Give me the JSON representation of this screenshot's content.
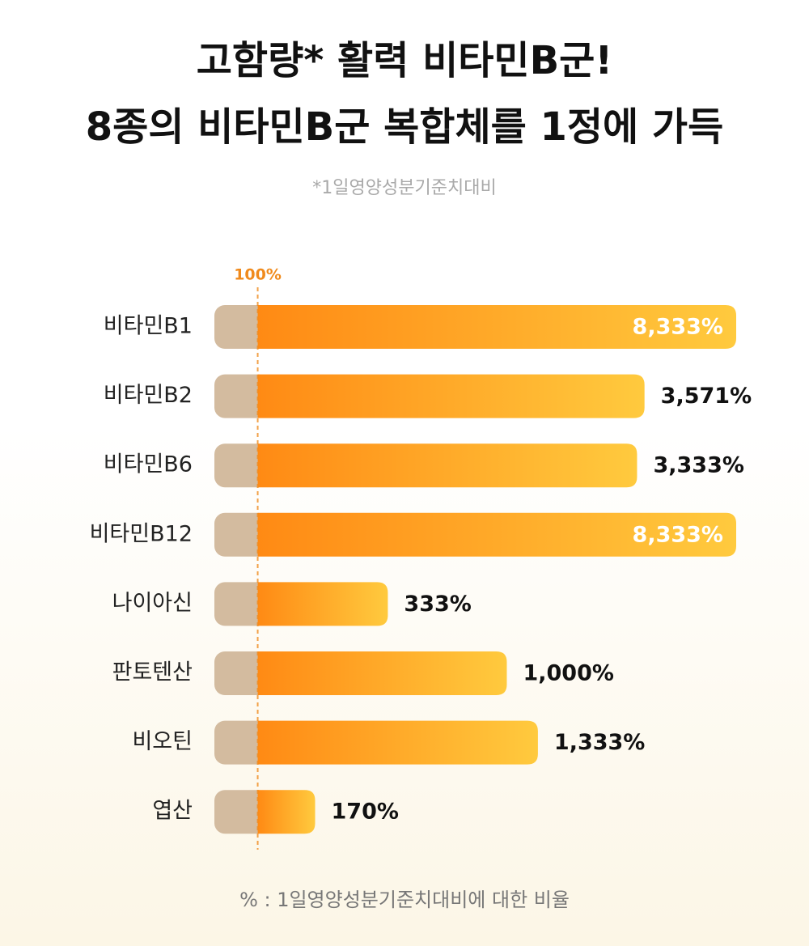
{
  "chart_data": {
    "type": "bar",
    "orientation": "horizontal",
    "title": [
      "고함량* 활력 비타민B군!",
      "8종의 비타민B군 복합체를 1정에 가득"
    ],
    "subtitle": "*1일영양성분기준치대비",
    "footnote": "% : 1일영양성분기준치대비에 대한 비율",
    "categories": [
      "비타민B1",
      "비타민B2",
      "비타민B6",
      "비타민B12",
      "나이아신",
      "판토텐산",
      "비오틴",
      "엽산"
    ],
    "values": [
      8333,
      3571,
      3333,
      8333,
      333,
      1000,
      1333,
      170
    ],
    "value_labels": [
      "8,333%",
      "3,571%",
      "3,333%",
      "8,333%",
      "333%",
      "1,000%",
      "1,333%",
      "170%"
    ],
    "reference": {
      "value": 100,
      "label": "100%"
    },
    "xlim": [
      67,
      8333
    ],
    "log_scale": true,
    "color": [
      "#ff8a14",
      "#ffca3e"
    ],
    "base_color": "#d3bb9f",
    "reference_color": "#f08a1c"
  }
}
